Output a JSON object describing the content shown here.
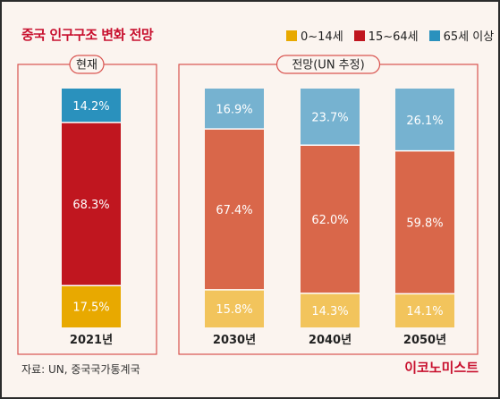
{
  "title": "중국 인구구조 변화 전망",
  "source": "자료: UN, 중국국가통계국",
  "logo": "이코노미스트",
  "chart_data": {
    "type": "bar",
    "stacked": true,
    "normalized_percent": true,
    "legend": [
      {
        "name": "0~14세",
        "color": "#e8a900"
      },
      {
        "name": "15~64세",
        "color": "#c0161f"
      },
      {
        "name": "65세 이상",
        "color": "#2a91bd"
      }
    ],
    "groups": [
      {
        "label": "현재",
        "categories": [
          "2021년"
        ],
        "bars": [
          {
            "category": "2021년",
            "values": [
              17.5,
              68.3,
              14.2
            ],
            "labels": [
              "17.5%",
              "68.3%",
              "14.2%"
            ],
            "colors": [
              "#e8a900",
              "#c0161f",
              "#2a91bd"
            ]
          }
        ]
      },
      {
        "label": "전망(UN 추정)",
        "categories": [
          "2030년",
          "2040년",
          "2050년"
        ],
        "bars": [
          {
            "category": "2030년",
            "values": [
              15.8,
              67.4,
              16.9
            ],
            "labels": [
              "15.8%",
              "67.4%",
              "16.9%"
            ],
            "colors": [
              "#f2c45c",
              "#d9674a",
              "#76b2d0"
            ]
          },
          {
            "category": "2040년",
            "values": [
              14.3,
              62.0,
              23.7
            ],
            "labels": [
              "14.3%",
              "62.0%",
              "23.7%"
            ],
            "colors": [
              "#f2c45c",
              "#d9674a",
              "#76b2d0"
            ]
          },
          {
            "category": "2050년",
            "values": [
              14.1,
              59.8,
              26.1
            ],
            "labels": [
              "14.1%",
              "59.8%",
              "26.1%"
            ],
            "colors": [
              "#f2c45c",
              "#d9674a",
              "#76b2d0"
            ]
          }
        ]
      }
    ]
  }
}
